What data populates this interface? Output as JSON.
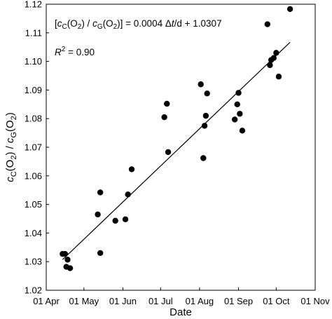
{
  "chart_data": {
    "type": "scatter",
    "xlabel": "Date",
    "ylabel_parts": {
      "c1": "c",
      "sub1": "C",
      "mid1": "(O",
      "sub2": "2",
      "mid2": ") / ",
      "c2": "c",
      "sub3": "G",
      "mid3": "(O",
      "sub4": "2",
      "mid4": ")"
    },
    "xlim": [
      "2019-04-01",
      "2019-11-01"
    ],
    "ylim": [
      1.02,
      1.12
    ],
    "x_ticks": [
      {
        "date": "2019-04-01",
        "label": "01 Apr"
      },
      {
        "date": "2019-05-01",
        "label": "01 May"
      },
      {
        "date": "2019-06-01",
        "label": "01 Jun"
      },
      {
        "date": "2019-07-01",
        "label": "01 Jul"
      },
      {
        "date": "2019-08-01",
        "label": "01 Aug"
      },
      {
        "date": "2019-09-01",
        "label": "01 Sep"
      },
      {
        "date": "2019-10-01",
        "label": "01 Oct"
      },
      {
        "date": "2019-11-01",
        "label": "01 Nov"
      }
    ],
    "y_ticks": [
      {
        "value": 1.02,
        "label": "1.02"
      },
      {
        "value": 1.03,
        "label": "1.03"
      },
      {
        "value": 1.04,
        "label": "1.04"
      },
      {
        "value": 1.05,
        "label": "1.05"
      },
      {
        "value": 1.06,
        "label": "1.06"
      },
      {
        "value": 1.07,
        "label": "1.07"
      },
      {
        "value": 1.08,
        "label": "1.08"
      },
      {
        "value": 1.09,
        "label": "1.09"
      },
      {
        "value": 1.1,
        "label": "1.10"
      },
      {
        "value": 1.11,
        "label": "1.11"
      },
      {
        "value": 1.12,
        "label": "1.12"
      }
    ],
    "grid": false,
    "points": [
      {
        "x": "2019-04-14",
        "y": 1.0327
      },
      {
        "x": "2019-04-16",
        "y": 1.0327
      },
      {
        "x": "2019-04-17",
        "y": 1.0282
      },
      {
        "x": "2019-04-18",
        "y": 1.0307
      },
      {
        "x": "2019-04-20",
        "y": 1.0277
      },
      {
        "x": "2019-05-12",
        "y": 1.0465
      },
      {
        "x": "2019-05-14",
        "y": 1.033
      },
      {
        "x": "2019-05-14",
        "y": 1.0542
      },
      {
        "x": "2019-05-26",
        "y": 1.0443
      },
      {
        "x": "2019-06-03",
        "y": 1.0448
      },
      {
        "x": "2019-06-05",
        "y": 1.0535
      },
      {
        "x": "2019-06-08",
        "y": 1.0623
      },
      {
        "x": "2019-07-04",
        "y": 1.0805
      },
      {
        "x": "2019-07-06",
        "y": 1.0852
      },
      {
        "x": "2019-07-07",
        "y": 1.0683
      },
      {
        "x": "2019-08-02",
        "y": 1.092
      },
      {
        "x": "2019-08-04",
        "y": 1.0662
      },
      {
        "x": "2019-08-05",
        "y": 1.0775
      },
      {
        "x": "2019-08-06",
        "y": 1.081
      },
      {
        "x": "2019-08-07",
        "y": 1.0888
      },
      {
        "x": "2019-08-29",
        "y": 1.0797
      },
      {
        "x": "2019-08-31",
        "y": 1.085
      },
      {
        "x": "2019-09-01",
        "y": 1.089
      },
      {
        "x": "2019-09-02",
        "y": 1.0817
      },
      {
        "x": "2019-09-04",
        "y": 1.0758
      },
      {
        "x": "2019-09-24",
        "y": 1.113
      },
      {
        "x": "2019-09-26",
        "y": 1.0987
      },
      {
        "x": "2019-09-27",
        "y": 1.1005
      },
      {
        "x": "2019-09-29",
        "y": 1.1012
      },
      {
        "x": "2019-10-01",
        "y": 1.103
      },
      {
        "x": "2019-10-03",
        "y": 1.0947
      },
      {
        "x": "2019-10-12",
        "y": 1.1183
      }
    ],
    "fit_line": {
      "slope_per_day": 0.0004,
      "intercept": 1.0307,
      "x_start": "2019-04-14",
      "x_end": "2019-10-12",
      "y_start": 1.0307,
      "y_end": 1.1067
    },
    "annotations": {
      "equation": {
        "prefix": "[",
        "c1": "c",
        "sub1": "C",
        "mid1": "(O",
        "sub2": "2",
        "mid2": ") / ",
        "c2": "c",
        "sub3": "G",
        "mid3": "(O",
        "sub4": "2",
        "mid4": ")] = 0.0004 ",
        "delta": "Δ",
        "t": "t",
        "suffix": "/d + 1.0307"
      },
      "r2": {
        "r": "R",
        "sup": "2",
        "value": " = 0.90"
      }
    }
  }
}
